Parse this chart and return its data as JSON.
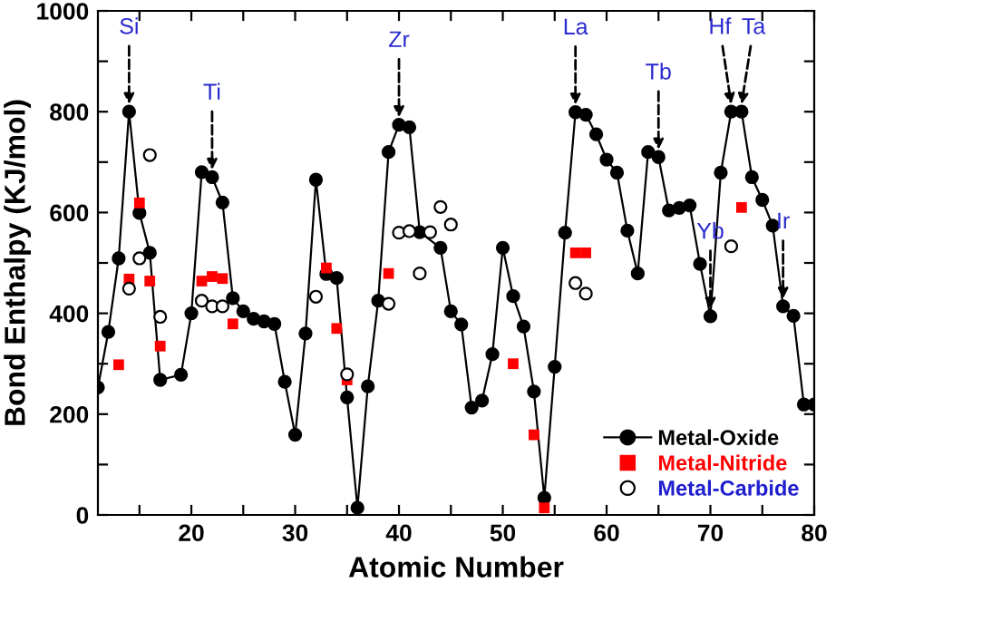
{
  "chart_data": {
    "type": "line",
    "xlabel": "Atomic Number",
    "ylabel": "Bond Enthalpy (KJ/mol)",
    "xlim": [
      11,
      80
    ],
    "ylim": [
      0,
      1000
    ],
    "xticks": [
      {
        "value": 15,
        "label": null
      },
      20,
      {
        "value": 25,
        "label": null
      },
      30,
      {
        "value": 35,
        "label": null
      },
      40,
      {
        "value": 45,
        "label": null
      },
      50,
      {
        "value": 55,
        "label": null
      },
      60,
      {
        "value": 65,
        "label": null
      },
      70,
      {
        "value": 75,
        "label": null
      },
      80
    ],
    "yticks": [
      0,
      {
        "value": 100,
        "label": null
      },
      200,
      {
        "value": 300,
        "label": null
      },
      400,
      {
        "value": 500,
        "label": null
      },
      600,
      {
        "value": 700,
        "label": null
      },
      800,
      {
        "value": 900,
        "label": null
      },
      1000
    ],
    "grid": false,
    "legend": "bottom right",
    "series": [
      {
        "name": "Metal-Oxide",
        "marker": "circle",
        "color": "#000000",
        "x": [
          11,
          12,
          13,
          14,
          15,
          16,
          17,
          19,
          20,
          21,
          22,
          23,
          24,
          25,
          26,
          27,
          28,
          29,
          30,
          31,
          32,
          33,
          34,
          35,
          36,
          37,
          38,
          39,
          40,
          41,
          42,
          44,
          45,
          46,
          47,
          48,
          49,
          50,
          51,
          52,
          53,
          54,
          55,
          56,
          57,
          58,
          59,
          60,
          61,
          62,
          63,
          64,
          65,
          66,
          67,
          68,
          69,
          70,
          71,
          72,
          73,
          74,
          75,
          76,
          77,
          78,
          79,
          80
        ],
        "values": [
          253,
          363,
          509,
          800,
          599,
          520,
          268,
          278,
          400,
          680,
          670,
          620,
          430,
          404,
          389,
          384,
          379,
          264,
          159,
          360,
          665,
          478,
          470,
          233,
          14,
          255,
          425,
          720,
          774,
          769,
          561,
          530,
          404,
          378,
          213,
          227,
          319,
          530,
          434,
          374,
          245,
          34,
          294,
          560,
          799,
          794,
          755,
          705,
          679,
          564,
          479,
          720,
          710,
          604,
          609,
          614,
          498,
          394,
          679,
          800,
          800,
          670,
          625,
          574,
          414,
          395,
          219,
          219
        ]
      },
      {
        "name": "Metal-Nitride",
        "type": "scatter",
        "marker": "square",
        "color": "#ff0000",
        "x": [
          13,
          14,
          15,
          16,
          17,
          21,
          22,
          23,
          24,
          33,
          34,
          35,
          39,
          51,
          53,
          54,
          57,
          58,
          73
        ],
        "values": [
          298,
          468,
          619,
          464,
          335,
          464,
          473,
          469,
          379,
          490,
          370,
          268,
          479,
          300,
          159,
          14,
          520,
          520,
          610
        ]
      },
      {
        "name": "Metal-Carbide",
        "type": "scatter",
        "marker": "open circle",
        "color": "#000000",
        "x": [
          14,
          15,
          16,
          17,
          21,
          22,
          23,
          32,
          35,
          39,
          40,
          41,
          42,
          43,
          44,
          45,
          57,
          58,
          72
        ],
        "values": [
          449,
          509,
          714,
          393,
          425,
          414,
          414,
          433,
          279,
          419,
          560,
          563,
          479,
          561,
          611,
          576,
          460,
          439,
          533
        ]
      }
    ],
    "annotations": [
      {
        "text": "Si",
        "x": 14,
        "y": 800
      },
      {
        "text": "Ti",
        "x": 22,
        "y": 670
      },
      {
        "text": "Zr",
        "x": 40,
        "y": 774
      },
      {
        "text": "La",
        "x": 57,
        "y": 799
      },
      {
        "text": "Tb",
        "x": 65,
        "y": 710
      },
      {
        "text": "Yb",
        "x": 70,
        "y": 394
      },
      {
        "text": "Hf",
        "x": 72,
        "y": 800
      },
      {
        "text": "Ta",
        "x": 73,
        "y": 800
      },
      {
        "text": "Ir",
        "x": 77,
        "y": 414
      }
    ]
  }
}
